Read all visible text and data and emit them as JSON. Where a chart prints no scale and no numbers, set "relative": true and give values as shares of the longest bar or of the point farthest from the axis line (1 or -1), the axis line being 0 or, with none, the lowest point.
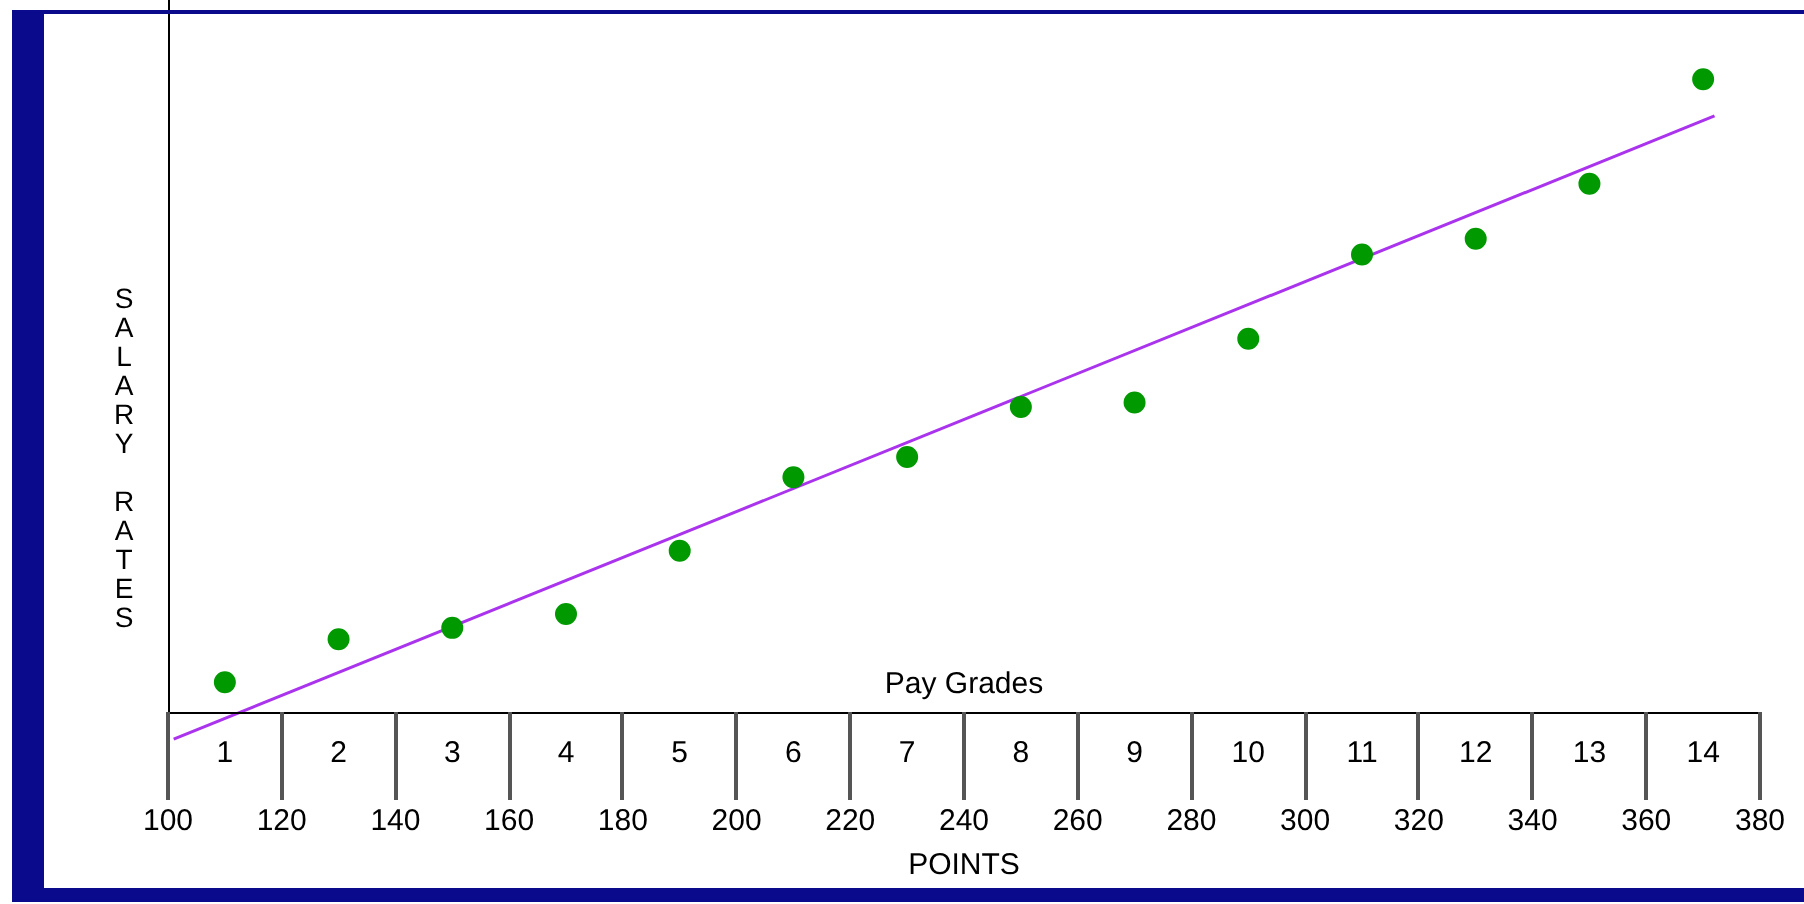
{
  "chart_data": {
    "type": "scatter",
    "xlabel": "POINTS",
    "ylabel": "SALARY RATES",
    "x2label": "Pay Grades",
    "relative": true,
    "xlim": [
      100,
      380
    ],
    "xticks": [
      100,
      120,
      140,
      160,
      180,
      200,
      220,
      240,
      260,
      280,
      300,
      320,
      340,
      360,
      380
    ],
    "x2lim": [
      0.5,
      14.5
    ],
    "x2ticks": [
      1,
      2,
      3,
      4,
      5,
      6,
      7,
      8,
      9,
      10,
      11,
      12,
      13,
      14
    ],
    "series": [
      {
        "color": "#009900",
        "marker": "circle",
        "x": [
          110,
          130,
          150,
          170,
          190,
          210,
          230,
          250,
          270,
          290,
          310,
          330,
          350,
          370
        ],
        "values": [
          0.047,
          0.115,
          0.133,
          0.155,
          0.255,
          0.371,
          0.403,
          0.482,
          0.489,
          0.59,
          0.723,
          0.748,
          0.835,
          1
        ]
      },
      {
        "type": "line",
        "marker": "none",
        "color": "#aa33ee",
        "x": [
          101,
          372
        ],
        "values": [
          -0.043,
          0.942
        ]
      }
    ]
  }
}
